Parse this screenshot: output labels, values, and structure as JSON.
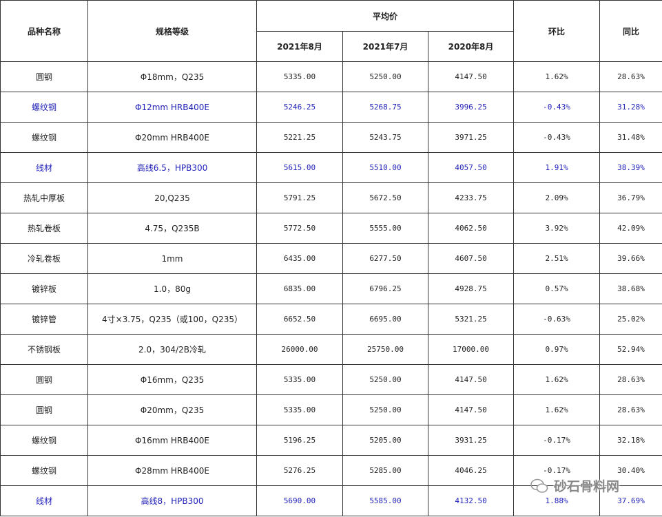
{
  "table": {
    "header": {
      "name": "品种名称",
      "spec": "规格等级",
      "avg": "平均价",
      "months": [
        "2021年8月",
        "2021年7月",
        "2020年8月"
      ],
      "mom": "环比",
      "yoy": "同比"
    },
    "rows": [
      {
        "cells": [
          "圆钢",
          "Φ18mm，Q235",
          "5335.00",
          "5250.00",
          "4147.50",
          "1.62%",
          "28.63%"
        ]
      },
      {
        "cells": [
          "螺纹钢",
          "Φ12mm HRB400E",
          "5246.25",
          "5268.75",
          "3996.25",
          "-0.43%",
          "31.28%"
        ],
        "color": "#1f1fb8"
      },
      {
        "cells": [
          "螺纹钢",
          "Φ20mm HRB400E",
          "5221.25",
          "5243.75",
          "3971.25",
          "-0.43%",
          "31.48%"
        ]
      },
      {
        "cells": [
          "线材",
          "高线6.5，HPB300",
          "5615.00",
          "5510.00",
          "4057.50",
          "1.91%",
          "38.39%"
        ],
        "color": "#1f1fb8"
      },
      {
        "cells": [
          "热轧中厚板",
          "20,Q235",
          "5791.25",
          "5672.50",
          "4233.75",
          "2.09%",
          "36.79%"
        ]
      },
      {
        "cells": [
          "热轧卷板",
          "4.75，Q235B",
          "5772.50",
          "5555.00",
          "4062.50",
          "3.92%",
          "42.09%"
        ]
      },
      {
        "cells": [
          "冷轧卷板",
          "1mm",
          "6435.00",
          "6277.50",
          "4607.50",
          "2.51%",
          "39.66%"
        ]
      },
      {
        "cells": [
          "镀锌板",
          "1.0，80g",
          "6835.00",
          "6796.25",
          "4928.75",
          "0.57%",
          "38.68%"
        ]
      },
      {
        "cells": [
          "镀锌管",
          "4寸×3.75，Q235（或100，Q235）",
          "6652.50",
          "6695.00",
          "5321.25",
          "-0.63%",
          "25.02%"
        ]
      },
      {
        "cells": [
          "不锈钢板",
          "2.0，304/2B冷轧",
          "26000.00",
          "25750.00",
          "17000.00",
          "0.97%",
          "52.94%"
        ]
      },
      {
        "cells": [
          "圆钢",
          "Φ16mm，Q235",
          "5335.00",
          "5250.00",
          "4147.50",
          "1.62%",
          "28.63%"
        ]
      },
      {
        "cells": [
          "圆钢",
          "Φ20mm，Q235",
          "5335.00",
          "5250.00",
          "4147.50",
          "1.62%",
          "28.63%"
        ]
      },
      {
        "cells": [
          "螺纹钢",
          "Φ16mm HRB400E",
          "5196.25",
          "5205.00",
          "3931.25",
          "-0.17%",
          "32.18%"
        ]
      },
      {
        "cells": [
          "螺纹钢",
          "Φ28mm HRB400E",
          "5276.25",
          "5285.00",
          "4046.25",
          "-0.17%",
          "30.40%"
        ]
      },
      {
        "cells": [
          "线材",
          "高线8，HPB300",
          "5690.00",
          "5585.00",
          "4132.50",
          "1.88%",
          "37.69%"
        ],
        "color": "#1f1fb8"
      }
    ]
  },
  "watermark": "砂石骨料网"
}
